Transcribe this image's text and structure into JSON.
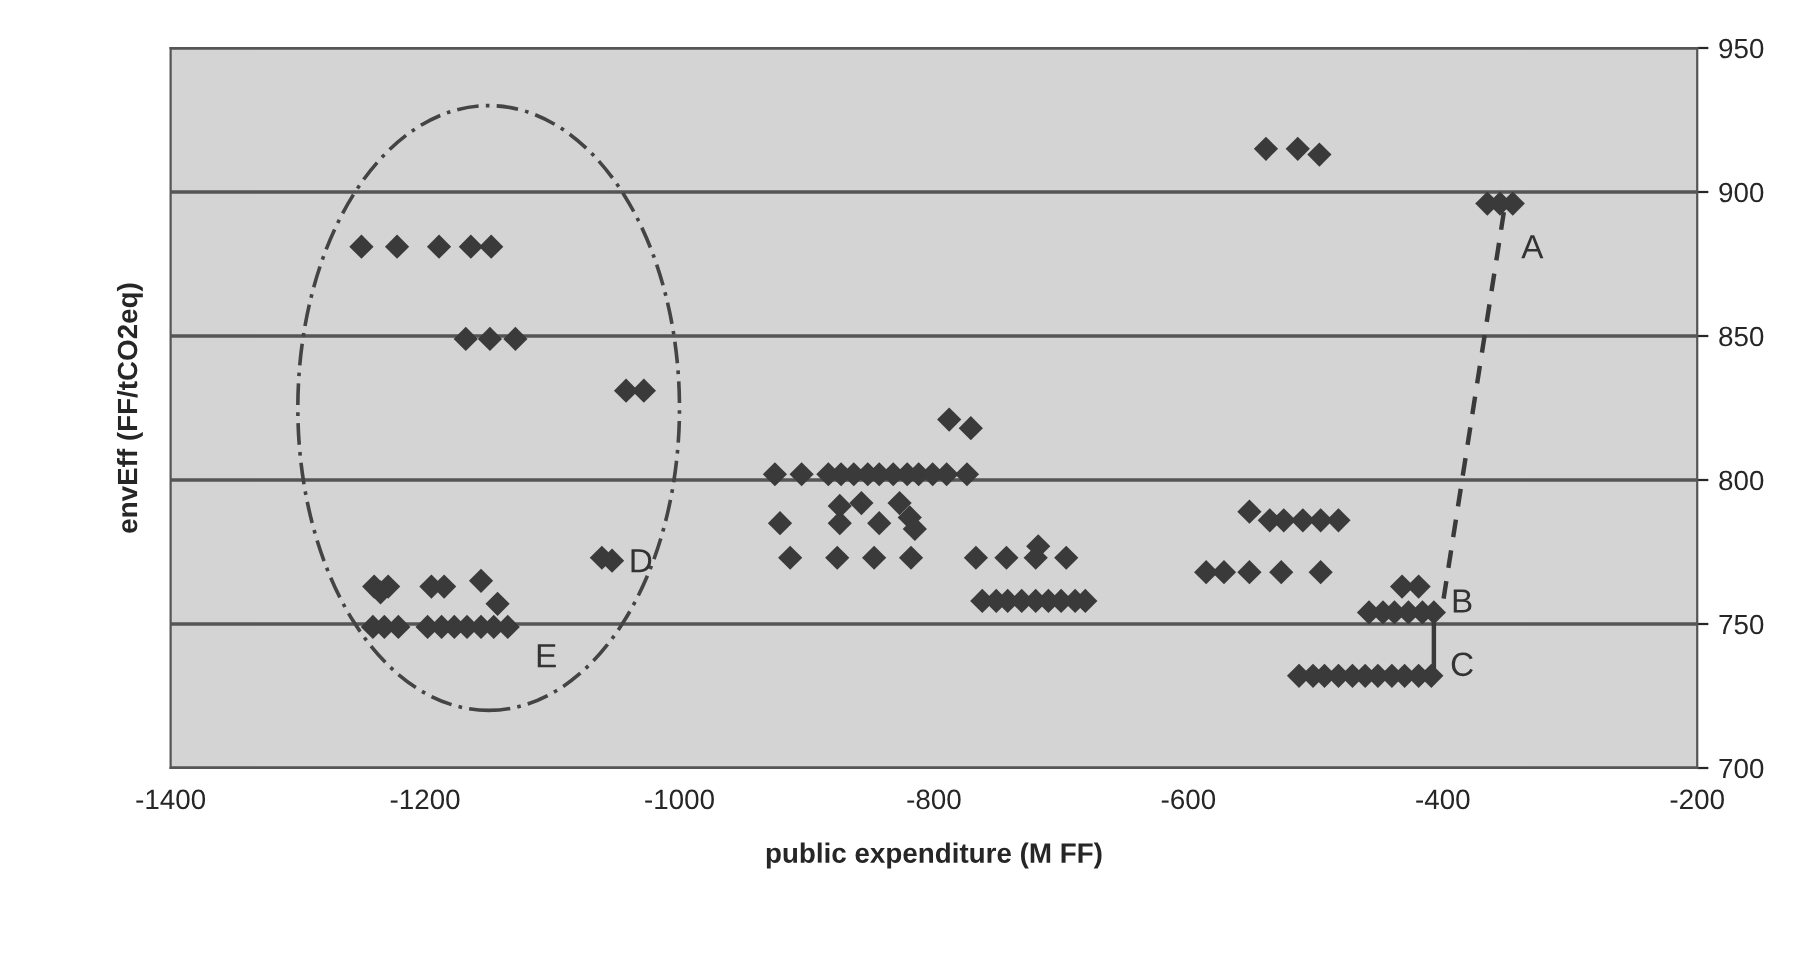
{
  "chart_data": {
    "type": "scatter",
    "xlabel": "public expenditure (M FF)",
    "ylabel": "envEff (FF/tCO2eq)",
    "xlim": [
      -1400,
      -200
    ],
    "xticks": [
      -1400,
      -1200,
      -1000,
      -800,
      -600,
      -400,
      -200
    ],
    "ylim": [
      700,
      950
    ],
    "yticks": [
      700,
      750,
      800,
      850,
      900,
      950
    ],
    "grid": "y",
    "marker": "diamond",
    "legend": false,
    "series": [
      {
        "color": "#3a3a3a",
        "x": [
          -1250,
          -1222,
          -1189,
          -1164,
          -1148,
          -1168,
          -1149,
          -1129,
          -1042,
          -1028,
          -1061,
          -1053,
          -1240,
          -1229,
          -1235,
          -1195,
          -1185,
          -1156,
          -1143,
          -1241,
          -1232,
          -1221,
          -1198,
          -1187,
          -1177,
          -1167,
          -1156,
          -1146,
          -1135,
          -788,
          -771,
          -925,
          -904,
          -883,
          -873,
          -863,
          -852,
          -843,
          -832,
          -821,
          -812,
          -801,
          -790,
          -774,
          -874,
          -857,
          -827,
          -921,
          -874,
          -843,
          -819,
          -815,
          -913,
          -876,
          -847,
          -818,
          -767,
          -743,
          -720,
          -696,
          -718,
          -762,
          -751,
          -742,
          -731,
          -720,
          -710,
          -700,
          -689,
          -681,
          -539,
          -514,
          -497,
          -365,
          -355,
          -345,
          -552,
          -536,
          -525,
          -510,
          -496,
          -482,
          -586,
          -572,
          -552,
          -527,
          -496,
          -432,
          -419,
          -458,
          -447,
          -438,
          -427,
          -416,
          -407,
          -513,
          -502,
          -493,
          -482,
          -471,
          -461,
          -451,
          -440,
          -430,
          -419,
          -409
        ],
        "values": [
          881,
          881,
          881,
          881,
          881,
          849,
          849,
          849,
          831,
          831,
          773,
          772,
          763,
          763,
          761,
          763,
          763,
          765,
          757,
          749,
          749,
          749,
          749,
          749,
          749,
          749,
          749,
          749,
          749,
          821,
          818,
          802,
          802,
          802,
          802,
          802,
          802,
          802,
          802,
          802,
          802,
          802,
          802,
          802,
          791,
          792,
          792,
          785,
          785,
          785,
          787,
          783,
          773,
          773,
          773,
          773,
          773,
          773,
          773,
          773,
          777,
          758,
          758,
          758,
          758,
          758,
          758,
          758,
          758,
          758,
          915,
          915,
          913,
          896,
          896,
          896,
          789,
          786,
          786,
          786,
          786,
          786,
          768,
          768,
          768,
          768,
          768,
          763,
          763,
          754,
          754,
          754,
          754,
          754,
          754,
          732,
          732,
          732,
          732,
          732,
          732,
          732,
          732,
          732,
          732,
          732
        ]
      },
      {
        "type": "line",
        "line_style": "dashed",
        "color": "#3a3a3a",
        "marker": "none",
        "x": [
          -352,
          -400
        ],
        "values": [
          893,
          757
        ]
      },
      {
        "type": "line",
        "line_style": "solid",
        "color": "#3a3a3a",
        "marker": "none",
        "x": [
          -407,
          -407
        ],
        "values": [
          732,
          753
        ]
      }
    ],
    "annotations": [
      "A",
      "B",
      "C",
      "D",
      "E"
    ]
  }
}
